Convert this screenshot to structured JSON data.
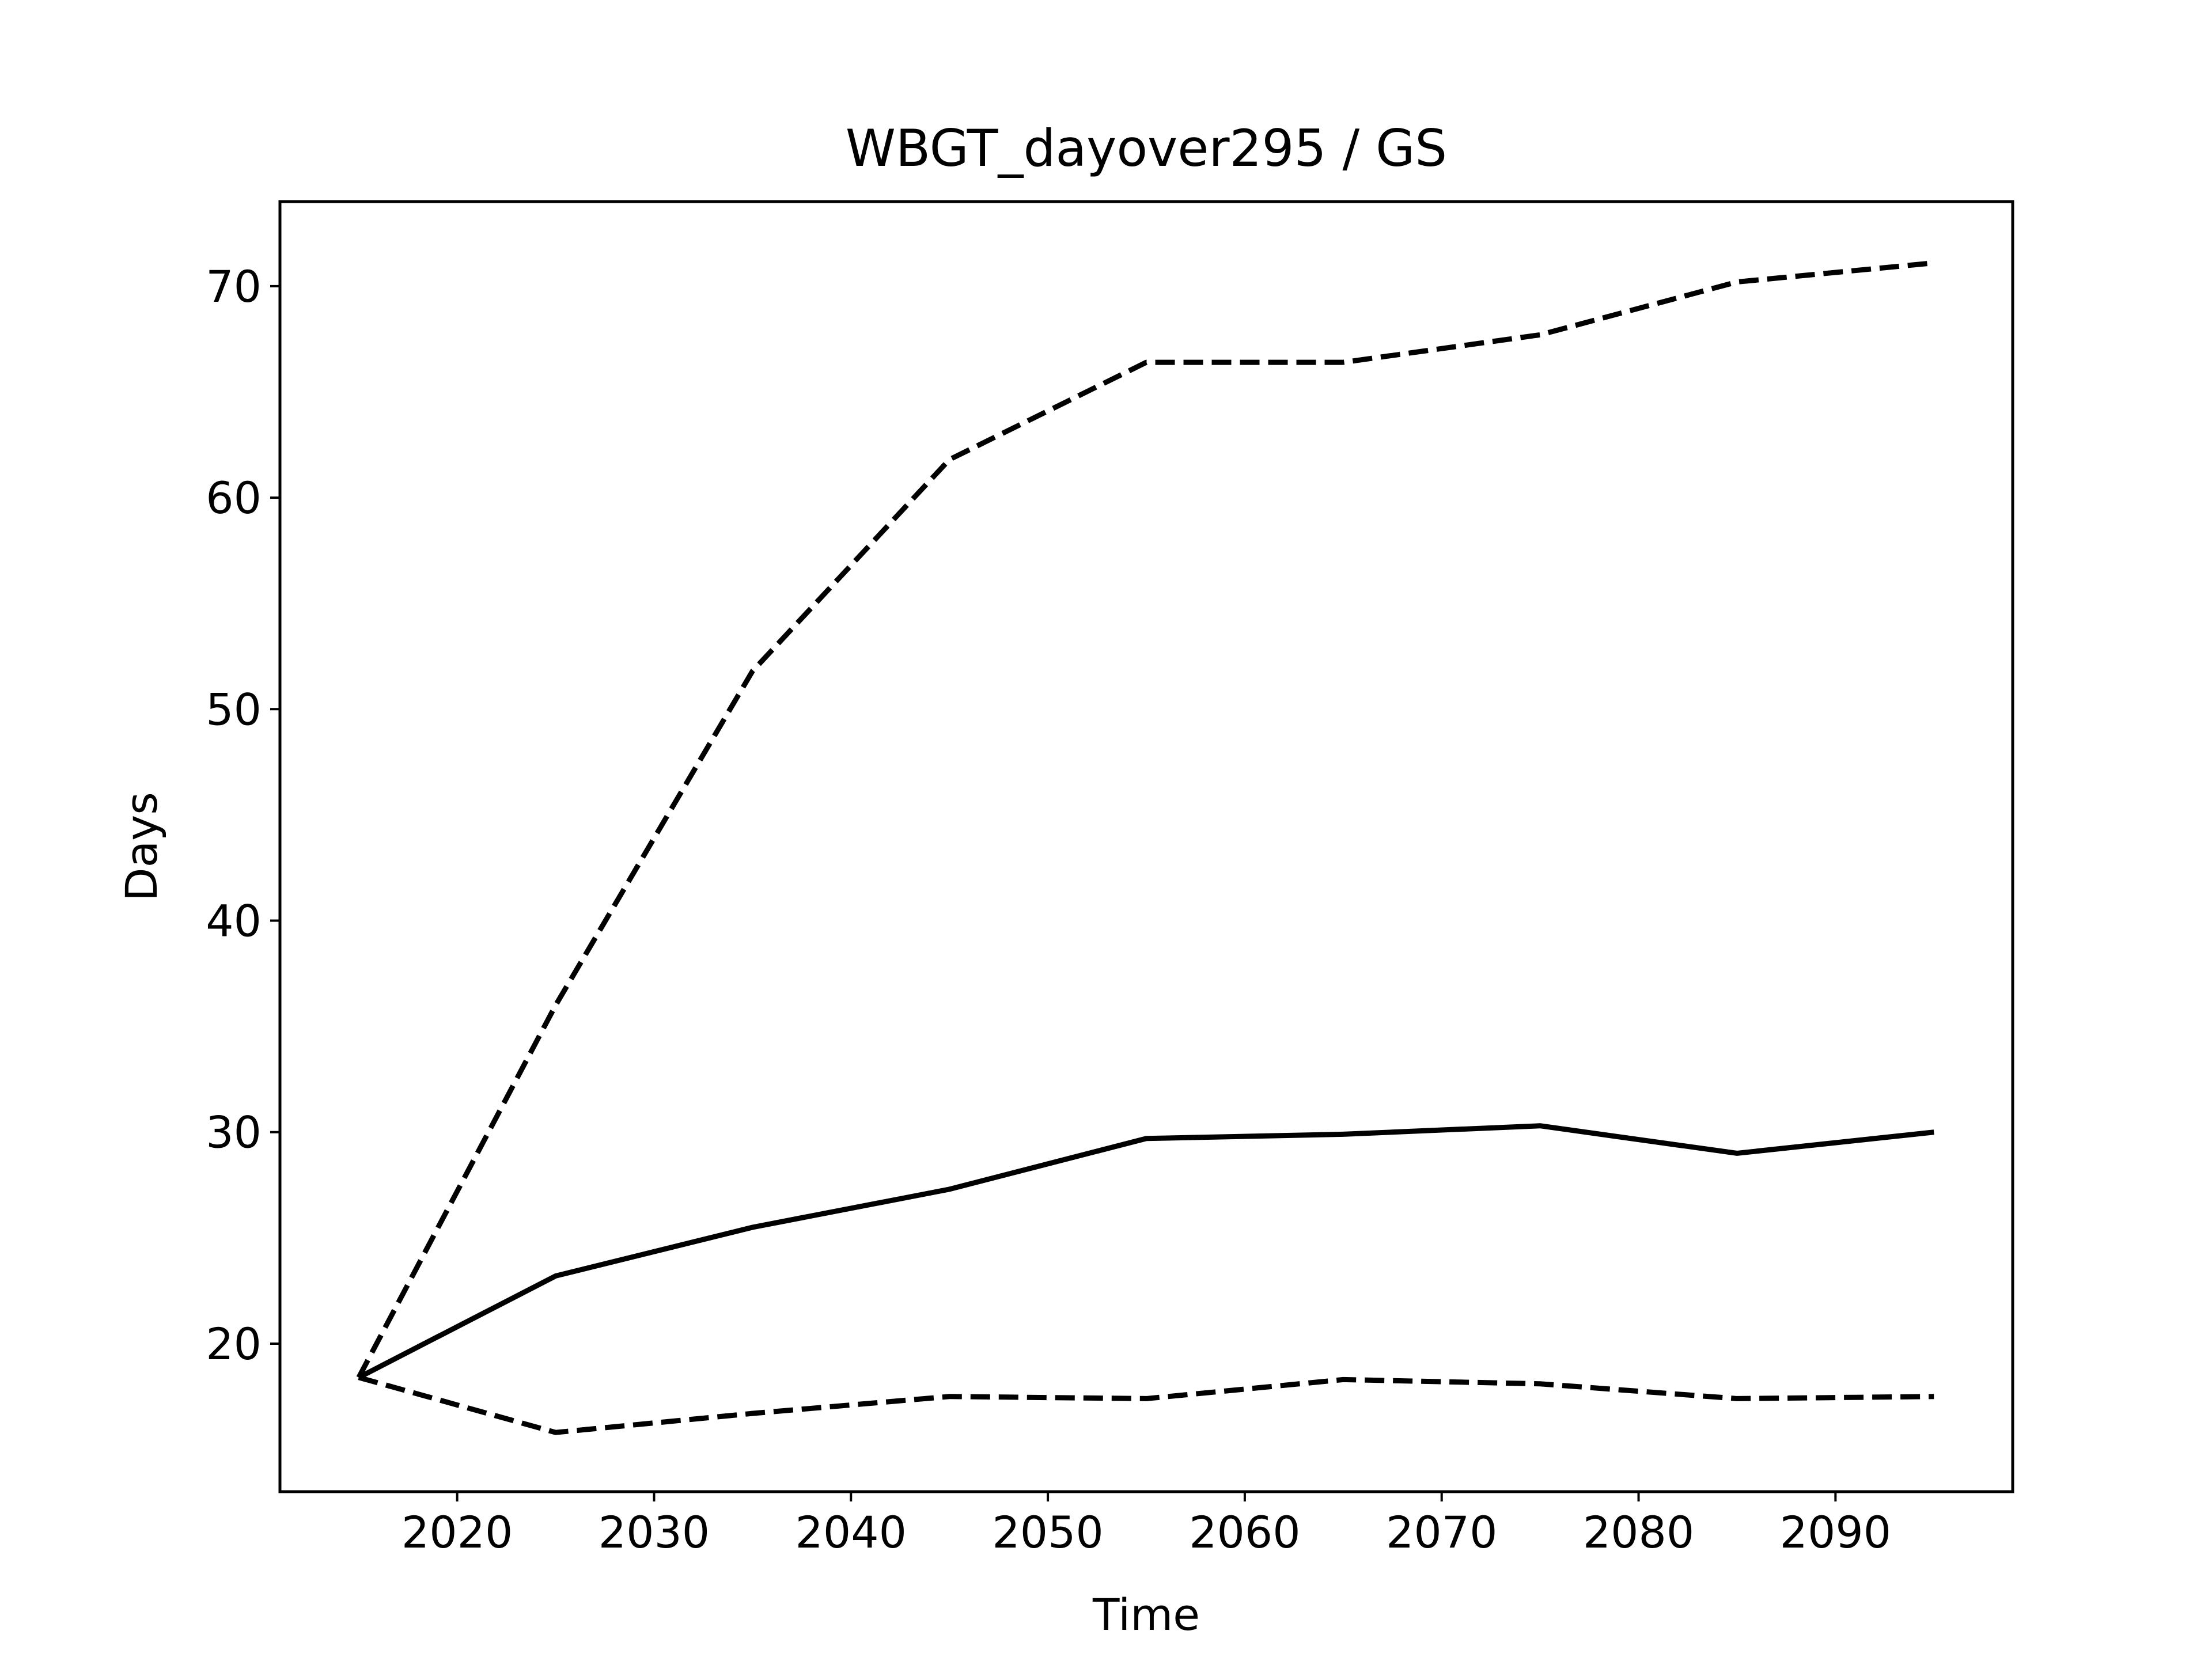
{
  "chart_data": {
    "type": "line",
    "title": "WBGT_dayover295 / GS",
    "xlabel": "Time",
    "ylabel": "Days",
    "xlim": [
      2011,
      2099
    ],
    "ylim": [
      13,
      74
    ],
    "xticks": [
      2020,
      2030,
      2040,
      2050,
      2060,
      2070,
      2080,
      2090
    ],
    "yticks": [
      20,
      30,
      40,
      50,
      60,
      70
    ],
    "grid": false,
    "legend": "none",
    "x": [
      2015,
      2025,
      2035,
      2045,
      2055,
      2065,
      2075,
      2085,
      2095
    ],
    "series": [
      {
        "style": "solid",
        "color": "#000000",
        "values": [
          18.4,
          23.2,
          25.5,
          27.3,
          29.7,
          29.9,
          30.3,
          29.0,
          30.0
        ]
      },
      {
        "style": "dashed",
        "color": "#000000",
        "values": [
          18.4,
          36.0,
          51.8,
          61.8,
          66.4,
          66.4,
          67.7,
          70.2,
          71.1
        ]
      },
      {
        "style": "dashed",
        "color": "#000000",
        "values": [
          18.4,
          15.8,
          16.7,
          17.5,
          17.4,
          18.3,
          18.1,
          17.4,
          17.5
        ]
      }
    ]
  }
}
